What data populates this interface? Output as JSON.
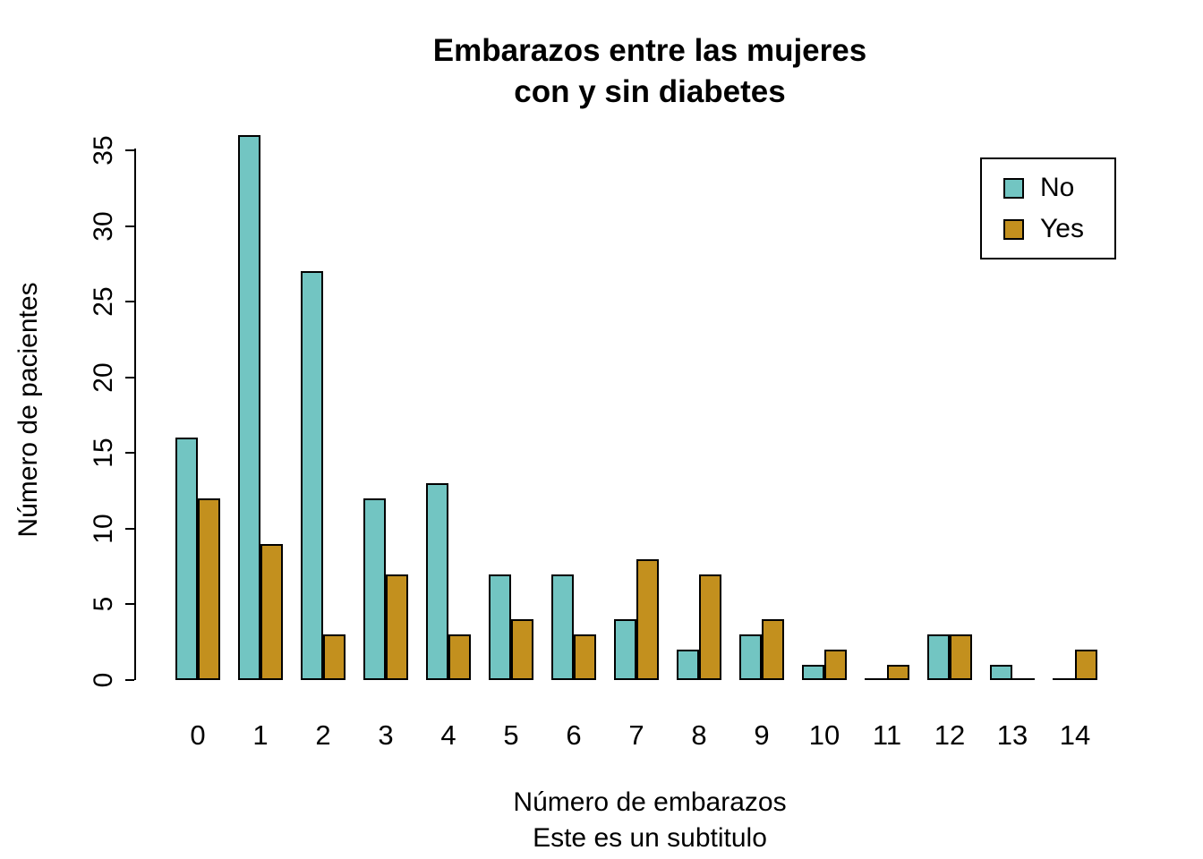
{
  "chart_data": {
    "type": "bar",
    "title": "Embarazos entre las mujeres",
    "title_line2": "con y sin diabetes",
    "xlabel": "Número de embarazos",
    "subtitle": "Este es un subtitulo",
    "ylabel": "Número de pacientes",
    "categories": [
      "0",
      "1",
      "2",
      "3",
      "4",
      "5",
      "6",
      "7",
      "8",
      "9",
      "10",
      "11",
      "12",
      "13",
      "14"
    ],
    "series": [
      {
        "name": "No",
        "color": "#72C5C2",
        "values": [
          16,
          36,
          27,
          12,
          13,
          7,
          7,
          4,
          2,
          3,
          1,
          0,
          3,
          1,
          0
        ]
      },
      {
        "name": "Yes",
        "color": "#C3901E",
        "values": [
          12,
          9,
          3,
          7,
          3,
          4,
          3,
          8,
          7,
          4,
          2,
          1,
          3,
          0,
          2
        ]
      }
    ],
    "yticks": [
      0,
      5,
      10,
      15,
      20,
      25,
      30,
      35
    ],
    "ylim": [
      0,
      36
    ],
    "grid": false,
    "legend_position": "top-right",
    "bar_border_color": "#000000",
    "axis_color": "#000000",
    "background_color": "#FFFFFF"
  }
}
